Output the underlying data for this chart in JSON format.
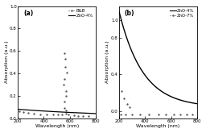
{
  "panel_a": {
    "label": "(a)",
    "xlabel": "Wavelength (nm)",
    "ylabel": "Absorption (a.u.)",
    "xlim": [
      200,
      800
    ],
    "ylim": [
      0,
      1.0
    ],
    "yticks": [
      0.0,
      0.2,
      0.4,
      0.6,
      0.8,
      1.0
    ],
    "ytick_labels": [
      "0.0",
      "0.2",
      "0.4",
      "0.6",
      "0.8",
      "1.0"
    ],
    "xticks": [
      200,
      400,
      600,
      800
    ],
    "xtick_labels": [
      "200",
      "400",
      "600",
      "800"
    ],
    "legend": [
      "B&B",
      "ZnO-4%"
    ],
    "solid_color": "#000000",
    "dot_color": "#555555",
    "solid_lw": 0.9,
    "dot_ms": 1.4
  },
  "panel_b": {
    "label": "(b)",
    "xlabel": "Wavelength (nm)",
    "ylabel": "Absorption (a.u.)",
    "xlim": [
      200,
      800
    ],
    "ylim": [
      -0.08,
      1.15
    ],
    "yticks": [
      -0.0,
      0.4,
      0.8,
      1.0
    ],
    "ytick_labels": [
      "0.0",
      "0.4",
      "0.8",
      "1.0"
    ],
    "xticks": [
      200,
      400,
      600,
      800
    ],
    "xtick_labels": [
      "200",
      "400",
      "600",
      "800"
    ],
    "legend": [
      "ZnO-4%",
      "ZnO-7%"
    ],
    "solid_color": "#000000",
    "dot_color": "#555555",
    "solid_lw": 1.0,
    "dot_ms": 1.4
  }
}
